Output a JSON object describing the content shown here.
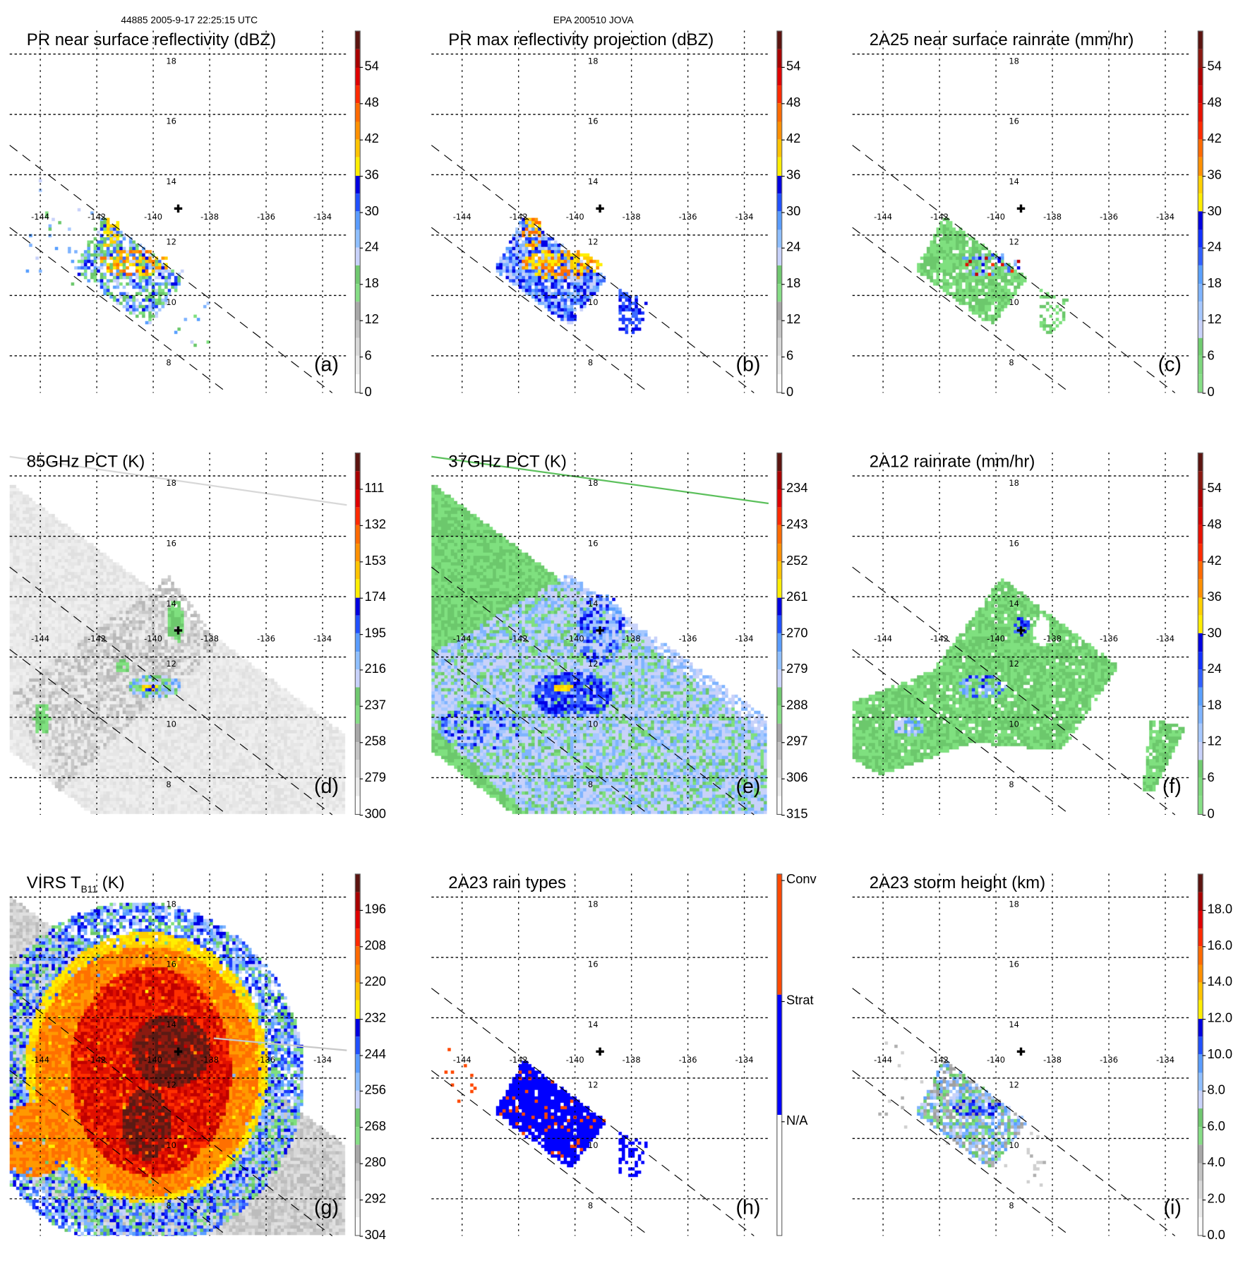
{
  "figure": {
    "orbit_header": "44885 2005-9-17 22:25:15 UTC",
    "storm_header": "EPA 200510 JOVA"
  },
  "colors": {
    "grid": "#000000",
    "tmi_edge_85": "#d8d8d8",
    "tmi_edge_37": "#5cc05c",
    "virs_edge": "#c8c8c8",
    "conv": "#ff4800",
    "strat": "#0000ff"
  },
  "chart_data": [
    {
      "type": "heatmap",
      "id": "a",
      "title": "PR near surface reflectivity (dBZ)",
      "panel_label": "(a)",
      "colorbar": {
        "ticks": [
          "54",
          "48",
          "42",
          "36",
          "30",
          "24",
          "18",
          "12",
          "6",
          "0"
        ],
        "range": [
          0,
          60
        ]
      },
      "xticks": [
        "-144",
        "-142",
        "-140",
        "-138",
        "-136",
        "-134"
      ],
      "yticks": [
        "18",
        "16",
        "14",
        "12",
        "10",
        "8"
      ]
    },
    {
      "type": "heatmap",
      "id": "b",
      "title": "PR max reflectivity projection (dBZ)",
      "panel_label": "(b)",
      "colorbar": {
        "ticks": [
          "54",
          "48",
          "42",
          "36",
          "30",
          "24",
          "18",
          "12",
          "6",
          "0"
        ],
        "range": [
          0,
          60
        ]
      },
      "xticks": [
        "-144",
        "-142",
        "-140",
        "-138",
        "-136",
        "-134"
      ],
      "yticks": [
        "18",
        "16",
        "14",
        "12",
        "10",
        "8"
      ]
    },
    {
      "type": "heatmap",
      "id": "c",
      "title": "2A25 near surface rainrate (mm/hr)",
      "panel_label": "(c)",
      "colorbar": {
        "ticks": [
          "54",
          "48",
          "42",
          "36",
          "30",
          "24",
          "18",
          "12",
          "6",
          "0"
        ],
        "range": [
          0,
          60
        ]
      },
      "xticks": [
        "-144",
        "-142",
        "-140",
        "-138",
        "-136",
        "-134"
      ],
      "yticks": [
        "18",
        "16",
        "14",
        "12",
        "10",
        "8"
      ]
    },
    {
      "type": "heatmap",
      "id": "d",
      "title": "85GHz PCT (K)",
      "panel_label": "(d)",
      "colorbar": {
        "ticks": [
          "111",
          "132",
          "153",
          "174",
          "195",
          "216",
          "237",
          "258",
          "279",
          "300"
        ],
        "range": [
          90,
          300
        ]
      },
      "xticks": [
        "-144",
        "-142",
        "-140",
        "-138",
        "-136",
        "-134"
      ],
      "yticks": [
        "18",
        "16",
        "14",
        "12",
        "10",
        "8"
      ]
    },
    {
      "type": "heatmap",
      "id": "e",
      "title": "37GHz PCT (K)",
      "panel_label": "(e)",
      "colorbar": {
        "ticks": [
          "234",
          "243",
          "252",
          "261",
          "270",
          "279",
          "288",
          "297",
          "306",
          "315"
        ],
        "range": [
          225,
          315
        ]
      },
      "xticks": [
        "-144",
        "-142",
        "-140",
        "-138",
        "-136",
        "-134"
      ],
      "yticks": [
        "18",
        "16",
        "14",
        "12",
        "10",
        "8"
      ]
    },
    {
      "type": "heatmap",
      "id": "f",
      "title": "2A12 rainrate (mm/hr)",
      "panel_label": "(f)",
      "colorbar": {
        "ticks": [
          "54",
          "48",
          "42",
          "36",
          "30",
          "24",
          "18",
          "12",
          "6",
          "0"
        ],
        "range": [
          0,
          60
        ]
      },
      "xticks": [
        "-144",
        "-142",
        "-140",
        "-138",
        "-136",
        "-134"
      ],
      "yticks": [
        "18",
        "16",
        "14",
        "12",
        "10",
        "8"
      ]
    },
    {
      "type": "heatmap",
      "id": "g",
      "title": "VIRS T",
      "title_sub": "B11",
      "title_suffix": " (K)",
      "panel_label": "(g)",
      "colorbar": {
        "ticks": [
          "196",
          "208",
          "220",
          "232",
          "244",
          "256",
          "268",
          "280",
          "292",
          "304"
        ],
        "range": [
          184,
          304
        ]
      },
      "xticks": [
        "-144",
        "-142",
        "-140",
        "-138",
        "-136",
        "-134"
      ],
      "yticks": [
        "18",
        "16",
        "14",
        "12",
        "10",
        "8"
      ]
    },
    {
      "type": "heatmap",
      "id": "h",
      "title": "2A23 rain types",
      "panel_label": "(h)",
      "colorbar": {
        "ticks": [
          "Conv",
          "Strat",
          "N/A"
        ],
        "categorical": true
      },
      "xticks": [
        "-144",
        "-142",
        "-140",
        "-138",
        "-136",
        "-134"
      ],
      "yticks": [
        "18",
        "16",
        "14",
        "12",
        "10",
        "8"
      ]
    },
    {
      "type": "heatmap",
      "id": "i",
      "title": "2A23 storm height (km)",
      "panel_label": "(i)",
      "colorbar": {
        "ticks": [
          "18.0",
          "16.0",
          "14.0",
          "12.0",
          "10.0",
          "8.0",
          "6.0",
          "4.0",
          "2.0",
          "0.0"
        ],
        "range": [
          0,
          20
        ]
      },
      "xticks": [
        "-144",
        "-142",
        "-140",
        "-138",
        "-136",
        "-134"
      ],
      "yticks": [
        "18",
        "16",
        "14",
        "12",
        "10",
        "8"
      ]
    }
  ]
}
